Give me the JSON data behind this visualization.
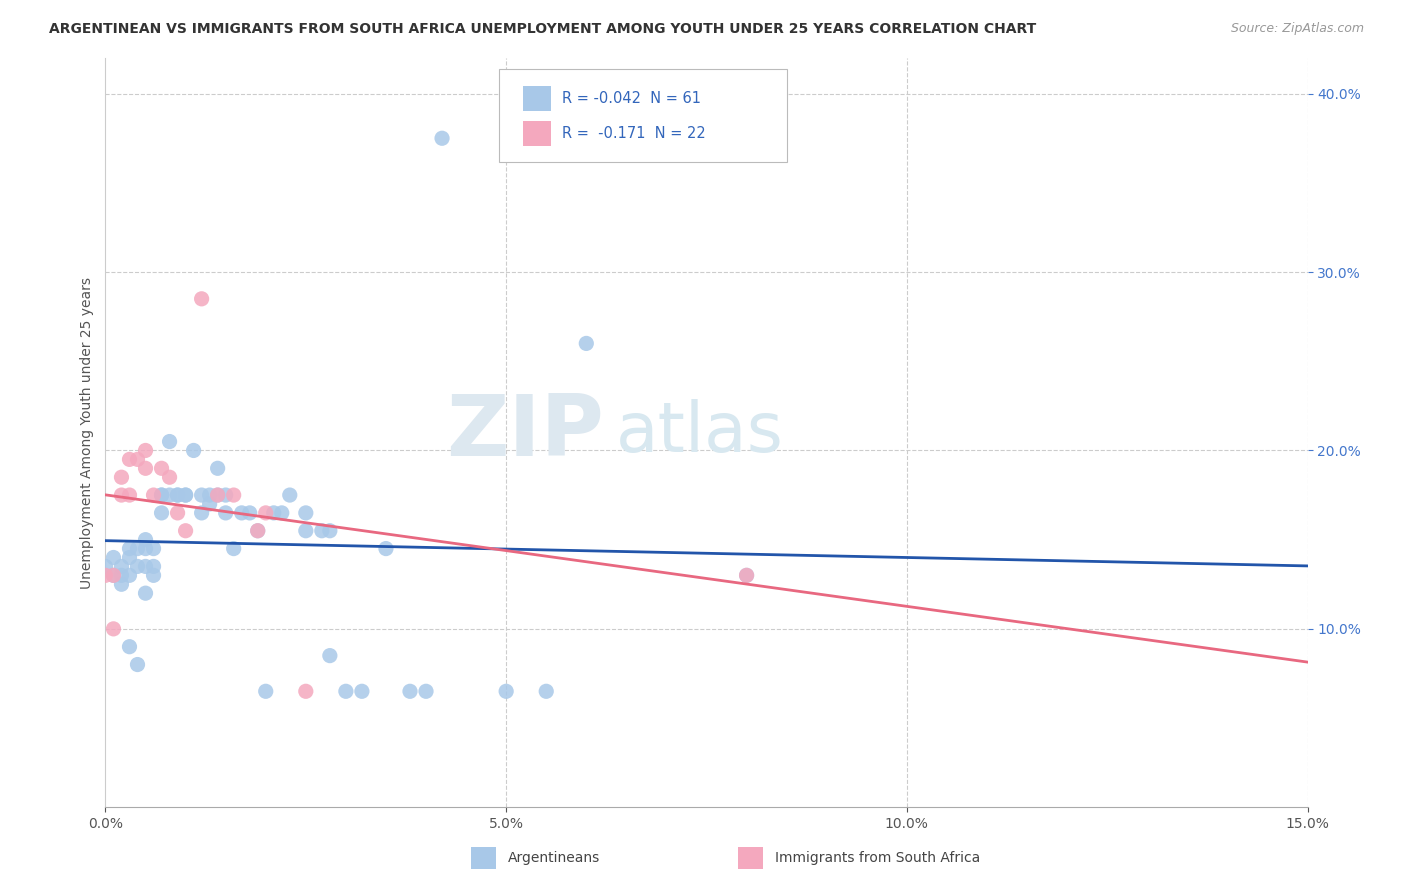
{
  "title": "ARGENTINEAN VS IMMIGRANTS FROM SOUTH AFRICA UNEMPLOYMENT AMONG YOUTH UNDER 25 YEARS CORRELATION CHART",
  "source": "Source: ZipAtlas.com",
  "ylabel": "Unemployment Among Youth under 25 years",
  "xlim": [
    0.0,
    0.15
  ],
  "ylim": [
    0.0,
    0.42
  ],
  "blue_color": "#a8c8e8",
  "pink_color": "#f4a8be",
  "blue_line_color": "#2255aa",
  "pink_line_color": "#e86880",
  "watermark_zip": "ZIP",
  "watermark_atlas": "atlas",
  "argentinean_x": [
    0.0,
    0.001,
    0.001,
    0.002,
    0.002,
    0.002,
    0.003,
    0.003,
    0.003,
    0.003,
    0.004,
    0.004,
    0.004,
    0.005,
    0.005,
    0.005,
    0.005,
    0.006,
    0.006,
    0.006,
    0.007,
    0.007,
    0.007,
    0.008,
    0.008,
    0.009,
    0.009,
    0.01,
    0.01,
    0.011,
    0.012,
    0.012,
    0.013,
    0.013,
    0.014,
    0.014,
    0.015,
    0.015,
    0.016,
    0.017,
    0.018,
    0.019,
    0.02,
    0.021,
    0.022,
    0.023,
    0.025,
    0.025,
    0.027,
    0.028,
    0.03,
    0.032,
    0.035,
    0.038,
    0.04,
    0.042,
    0.05,
    0.055,
    0.06,
    0.08,
    0.028
  ],
  "argentinean_y": [
    0.135,
    0.13,
    0.14,
    0.13,
    0.135,
    0.125,
    0.14,
    0.13,
    0.145,
    0.09,
    0.145,
    0.135,
    0.08,
    0.15,
    0.145,
    0.135,
    0.12,
    0.145,
    0.135,
    0.13,
    0.175,
    0.175,
    0.165,
    0.205,
    0.175,
    0.175,
    0.175,
    0.175,
    0.175,
    0.2,
    0.175,
    0.165,
    0.175,
    0.17,
    0.19,
    0.175,
    0.165,
    0.175,
    0.145,
    0.165,
    0.165,
    0.155,
    0.065,
    0.165,
    0.165,
    0.175,
    0.155,
    0.165,
    0.155,
    0.155,
    0.065,
    0.065,
    0.145,
    0.065,
    0.065,
    0.375,
    0.065,
    0.065,
    0.26,
    0.13,
    0.085
  ],
  "sa_x": [
    0.0,
    0.001,
    0.001,
    0.002,
    0.002,
    0.003,
    0.003,
    0.004,
    0.005,
    0.005,
    0.006,
    0.007,
    0.008,
    0.009,
    0.01,
    0.012,
    0.014,
    0.016,
    0.019,
    0.02,
    0.025,
    0.08
  ],
  "sa_y": [
    0.13,
    0.13,
    0.1,
    0.175,
    0.185,
    0.195,
    0.175,
    0.195,
    0.2,
    0.19,
    0.175,
    0.19,
    0.185,
    0.165,
    0.155,
    0.285,
    0.175,
    0.175,
    0.155,
    0.165,
    0.065,
    0.13
  ]
}
